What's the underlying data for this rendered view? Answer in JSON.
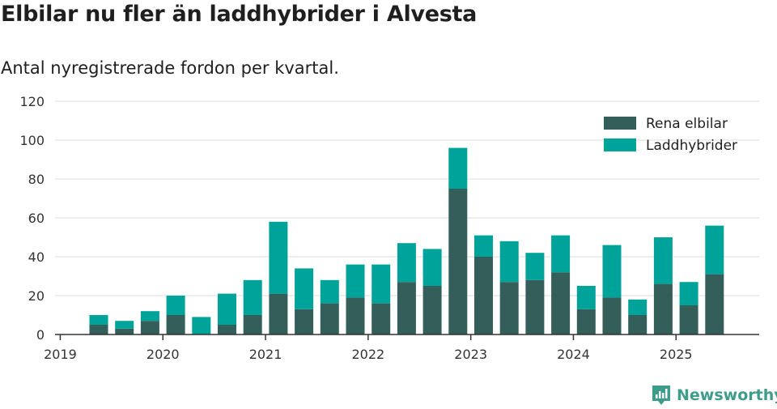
{
  "title": "Elbilar nu fler än laddhybrider i Alvesta",
  "subtitle": "Antal nyregistrerade fordon per kvartal.",
  "brand": "Newsworthy",
  "colors": {
    "elbil": "#335e5a",
    "laddhybrid": "#00a39a",
    "brand": "#3e9c8a"
  },
  "chart_data": {
    "type": "bar",
    "stacked": true,
    "categories": [
      "2019 Q2",
      "2019 Q3",
      "2019 Q4",
      "2020 Q1",
      "2020 Q2",
      "2020 Q3",
      "2020 Q4",
      "2021 Q1",
      "2021 Q2",
      "2021 Q3",
      "2021 Q4",
      "2022 Q1",
      "2022 Q2",
      "2022 Q3",
      "2022 Q4",
      "2023 Q1",
      "2023 Q2",
      "2023 Q3",
      "2023 Q4",
      "2024 Q1",
      "2024 Q2",
      "2024 Q3",
      "2024 Q4",
      "2025 Q1",
      "2025 Q2"
    ],
    "series": [
      {
        "name": "Rena elbilar",
        "color": "#335e5a",
        "values": [
          5,
          3,
          7,
          10,
          0,
          5,
          10,
          21,
          13,
          16,
          19,
          16,
          27,
          25,
          75,
          40,
          27,
          28,
          32,
          13,
          19,
          10,
          26,
          15,
          31
        ]
      },
      {
        "name": "Laddhybrider",
        "color": "#00a39a",
        "values": [
          5,
          4,
          5,
          10,
          9,
          16,
          18,
          37,
          21,
          12,
          17,
          20,
          20,
          19,
          21,
          11,
          21,
          14,
          19,
          12,
          27,
          8,
          24,
          12,
          25
        ]
      }
    ],
    "yticks": [
      0,
      20,
      40,
      60,
      80,
      100,
      120
    ],
    "ylim": [
      0,
      120
    ],
    "xticks": [
      "2019",
      "2020",
      "2021",
      "2022",
      "2023",
      "2024",
      "2025"
    ],
    "grid": true,
    "legend": "top-right"
  }
}
